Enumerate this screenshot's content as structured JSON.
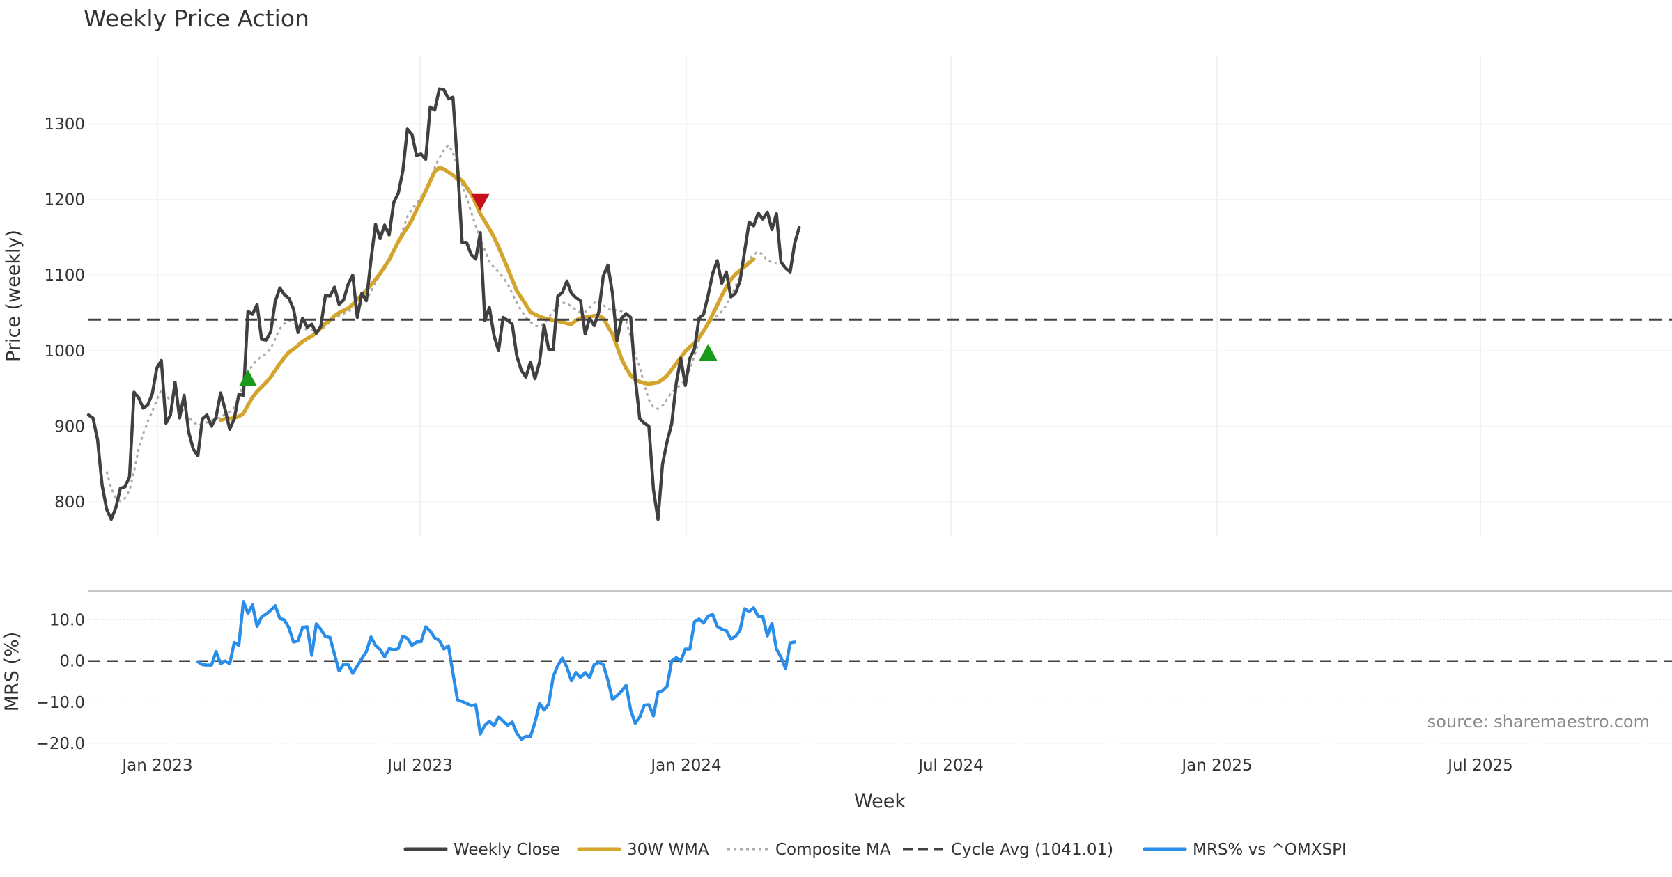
{
  "chart_data": {
    "type": "line",
    "title": "Weekly Price Action",
    "xlabel": "Week",
    "x_tick_labels": [
      "Jan 2023",
      "Jul 2023",
      "Jan 2024",
      "Jul 2024",
      "Jan 2025",
      "Jul 2025"
    ],
    "price_panel": {
      "ylabel": "Price (weekly)",
      "ylim": [
        755,
        1390
      ],
      "yticks": [
        800,
        900,
        1000,
        1100,
        1200,
        1300
      ],
      "cycle_avg": 1041.01,
      "series": [
        {
          "name": "Weekly Close",
          "color": "#404040",
          "style": "solid",
          "values": [
            915,
            911,
            882,
            822,
            790,
            777,
            792,
            818,
            820,
            833,
            945,
            938,
            924,
            928,
            943,
            977,
            987,
            904,
            915,
            958,
            911,
            941,
            892,
            870,
            861,
            910,
            915,
            900,
            912,
            944,
            922,
            896,
            910,
            942,
            941,
            1052,
            1048,
            1061,
            1015,
            1014,
            1025,
            1065,
            1083,
            1074,
            1069,
            1055,
            1024,
            1043,
            1031,
            1035,
            1023,
            1032,
            1073,
            1072,
            1084,
            1061,
            1067,
            1088,
            1100,
            1044,
            1076,
            1066,
            1120,
            1167,
            1148,
            1166,
            1153,
            1196,
            1208,
            1238,
            1293,
            1286,
            1258,
            1260,
            1253,
            1322,
            1318,
            1346,
            1345,
            1333,
            1335,
            1245,
            1143,
            1143,
            1127,
            1121,
            1156,
            1040,
            1057,
            1020,
            1000,
            1044,
            1040,
            1035,
            993,
            974,
            965,
            985,
            963,
            985,
            1034,
            1002,
            1001,
            1072,
            1077,
            1092,
            1076,
            1070,
            1066,
            1022,
            1043,
            1033,
            1051,
            1099,
            1113,
            1076,
            1013,
            1043,
            1049,
            1044,
            964,
            910,
            904,
            900,
            816,
            777,
            850,
            880,
            903,
            957,
            990,
            954,
            990,
            1002,
            1043,
            1048,
            1073,
            1102,
            1119,
            1089,
            1104,
            1071,
            1076,
            1092,
            1131,
            1170,
            1165,
            1182,
            1174,
            1183,
            1160,
            1181,
            1117,
            1109,
            1104,
            1142,
            1163
          ]
        },
        {
          "name": "30W WMA",
          "color": "#D4A52C",
          "style": "solid",
          "values": [
            null,
            null,
            null,
            null,
            null,
            null,
            null,
            null,
            null,
            null,
            null,
            null,
            null,
            null,
            null,
            null,
            null,
            null,
            null,
            null,
            null,
            null,
            null,
            null,
            null,
            null,
            null,
            null,
            null,
            908,
            910,
            910,
            911,
            913,
            917,
            928,
            938,
            946,
            952,
            958,
            965,
            974,
            983,
            991,
            998,
            1002,
            1007,
            1012,
            1016,
            1019,
            1024,
            1030,
            1036,
            1040,
            1046,
            1050,
            1053,
            1056,
            1061,
            1068,
            1074,
            1080,
            1087,
            1094,
            1102,
            1111,
            1120,
            1132,
            1144,
            1154,
            1163,
            1173,
            1186,
            1198,
            1211,
            1224,
            1237,
            1242,
            1240,
            1236,
            1232,
            1227,
            1225,
            1216,
            1207,
            1195,
            1181,
            1171,
            1161,
            1150,
            1137,
            1123,
            1109,
            1094,
            1079,
            1070,
            1061,
            1051,
            1048,
            1045,
            1043,
            1042,
            1040,
            1039,
            1038,
            1036,
            1035,
            1040,
            1043,
            1045,
            1045,
            1046,
            1046,
            1043,
            1032,
            1022,
            1006,
            989,
            977,
            967,
            962,
            959,
            957,
            956,
            957,
            958,
            962,
            967,
            975,
            983,
            991,
            999,
            1005,
            1010,
            1017,
            1026,
            1036,
            1048,
            1060,
            1073,
            1084,
            1094,
            1101,
            1106,
            1111,
            1116,
            1121
          ]
        },
        {
          "name": "Composite MA",
          "color": "#AAAAAA",
          "style": "dotted",
          "values": [
            null,
            null,
            null,
            null,
            840,
            818,
            805,
            801,
            805,
            815,
            840,
            870,
            890,
            906,
            920,
            935,
            948,
            941,
            934,
            929,
            925,
            920,
            912,
            906,
            901,
            903,
            905,
            908,
            910,
            912,
            916,
            919,
            925,
            940,
            955,
            971,
            981,
            988,
            992,
            996,
            1003,
            1016,
            1029,
            1036,
            1040,
            1037,
            1032,
            1030,
            1028,
            1027,
            1026,
            1028,
            1032,
            1038,
            1043,
            1046,
            1049,
            1052,
            1056,
            1058,
            1062,
            1068,
            1078,
            1090,
            1100,
            1108,
            1118,
            1131,
            1145,
            1160,
            1177,
            1188,
            1194,
            1203,
            1214,
            1226,
            1242,
            1255,
            1265,
            1272,
            1262,
            1243,
            1220,
            1202,
            1183,
            1165,
            1148,
            1133,
            1118,
            1110,
            1104,
            1097,
            1088,
            1076,
            1063,
            1053,
            1044,
            1038,
            1033,
            1032,
            1036,
            1044,
            1052,
            1059,
            1063,
            1063,
            1058,
            1054,
            1050,
            1051,
            1057,
            1063,
            1066,
            1060,
            1056,
            1052,
            1054,
            1052,
            1039,
            1018,
            995,
            978,
            955,
            935,
            925,
            923,
            927,
            936,
            945,
            950,
            955,
            962,
            975,
            993,
            1013,
            1027,
            1036,
            1042,
            1046,
            1052,
            1060,
            1071,
            1085,
            1098,
            1110,
            1120,
            1127,
            1131,
            1127,
            1119,
            1117,
            1115
          ]
        },
        {
          "name": "Cycle Avg (1041.01)",
          "color": "#404040",
          "style": "dashed"
        }
      ],
      "signals": [
        {
          "type": "buy",
          "index": 35,
          "value": 964
        },
        {
          "type": "sell",
          "index": 86,
          "value": 1196
        },
        {
          "type": "buy",
          "index": 136,
          "value": 998
        }
      ]
    },
    "mrs_panel": {
      "ylabel": "MRS (%)",
      "ylim": [
        -22,
        17
      ],
      "yticks": [
        10.0,
        0.0,
        -10.0,
        -20.0
      ],
      "ytick_labels": [
        "10.0",
        "0.0",
        "−10.0",
        "−20.0"
      ],
      "series": [
        {
          "name": "MRS% vs ^OMXSPI",
          "color": "#2A8EE8",
          "style": "solid",
          "start_index": 24,
          "values": [
            -0.2,
            -0.9,
            -1.0,
            -1.0,
            2.3,
            -0.7,
            0.0,
            -0.7,
            4.5,
            3.8,
            14.4,
            11.6,
            13.6,
            8.4,
            10.7,
            11.4,
            12.3,
            13.4,
            10.3,
            10.0,
            8.0,
            4.6,
            4.9,
            8.2,
            8.3,
            1.4,
            9.0,
            7.7,
            5.9,
            5.7,
            1.6,
            -2.4,
            -0.8,
            -0.9,
            -3.0,
            -1.2,
            0.6,
            2.3,
            5.8,
            3.8,
            2.8,
            1.0,
            3.0,
            2.7,
            3.0,
            6.0,
            5.5,
            3.8,
            4.6,
            4.7,
            8.3,
            7.3,
            5.6,
            5.0,
            2.9,
            3.7,
            -3.0,
            -9.4,
            -9.8,
            -10.3,
            -10.8,
            -10.6,
            -17.7,
            -15.6,
            -14.6,
            -15.7,
            -13.5,
            -14.6,
            -15.6,
            -14.8,
            -17.5,
            -19.0,
            -18.3,
            -18.3,
            -14.9,
            -10.3,
            -11.9,
            -10.5,
            -3.8,
            -1.1,
            0.7,
            -1.5,
            -4.8,
            -2.8,
            -4.0,
            -2.8,
            -4.0,
            -0.9,
            -0.3,
            -0.9,
            -4.7,
            -9.3,
            -8.4,
            -7.3,
            -5.9,
            -11.9,
            -15.1,
            -13.6,
            -10.7,
            -10.6,
            -13.3,
            -7.6,
            -7.2,
            -6.1,
            0.0,
            0.8,
            0.0,
            2.9,
            2.9,
            9.5,
            10.2,
            9.2,
            10.9,
            11.3,
            8.4,
            7.7,
            7.4,
            5.3,
            6.0,
            7.4,
            12.7,
            12.0,
            12.9,
            10.8,
            10.8,
            6.1,
            9.2,
            2.9,
            0.9,
            -1.9,
            4.4,
            4.6
          ]
        }
      ]
    },
    "legend": [
      "Weekly Close",
      "30W WMA",
      "Composite MA",
      "Cycle Avg (1041.01)",
      "MRS% vs ^OMXSPI"
    ],
    "source": "source: sharemaestro.com"
  }
}
